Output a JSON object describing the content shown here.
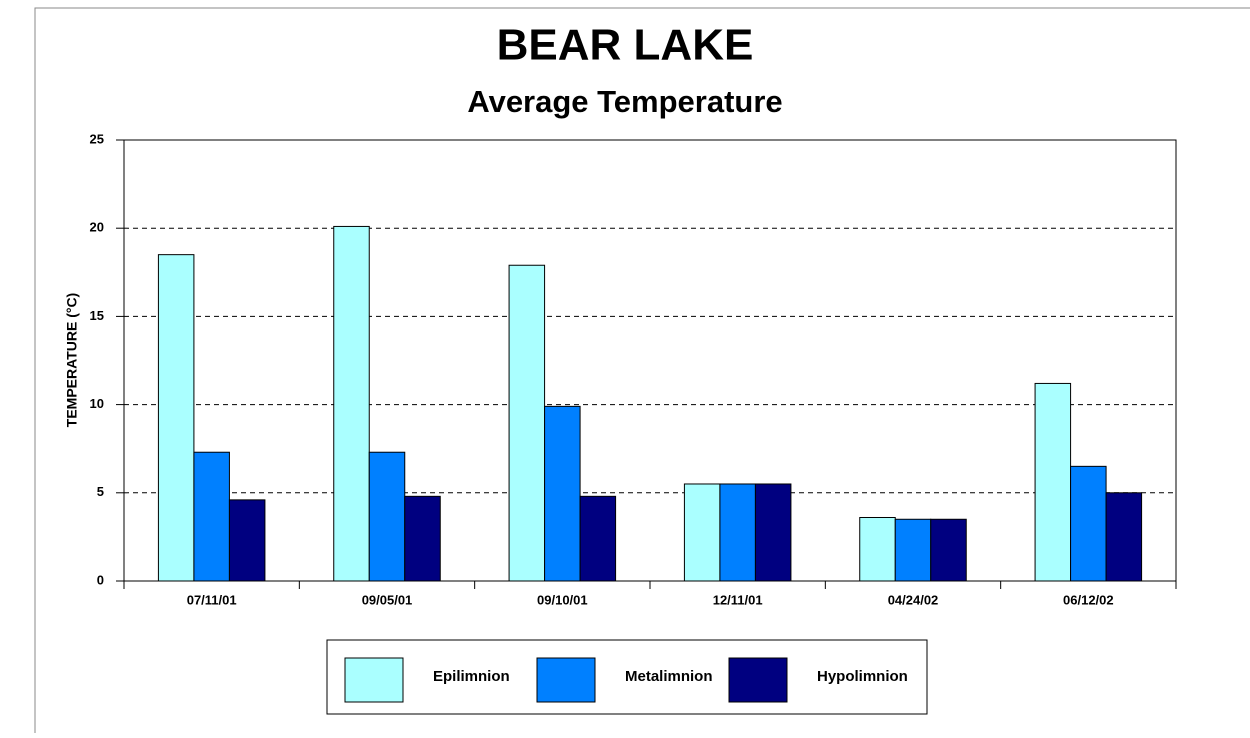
{
  "chart_data": {
    "type": "bar",
    "title": "BEAR LAKE",
    "subtitle": "Average Temperature",
    "y_label": "TEMPERATURE (°C)",
    "categories": [
      "07/11/01",
      "09/05/01",
      "09/10/01",
      "12/11/01",
      "04/24/02",
      "06/12/02"
    ],
    "series": [
      {
        "name": "Epilimnion",
        "color": "#aaffff",
        "values": [
          18.5,
          20.1,
          17.9,
          5.5,
          3.6,
          11.2
        ]
      },
      {
        "name": "Metalimnion",
        "color": "#0080ff",
        "values": [
          7.3,
          7.3,
          9.9,
          5.5,
          3.5,
          6.5
        ]
      },
      {
        "name": "Hypolimnion",
        "color": "#000080",
        "values": [
          4.6,
          4.8,
          4.8,
          5.5,
          3.5,
          5.0
        ]
      }
    ],
    "ylim": [
      0,
      25
    ],
    "yticks": [
      0,
      5,
      10,
      15,
      20,
      25
    ],
    "grid": true,
    "legend": "bottom"
  }
}
